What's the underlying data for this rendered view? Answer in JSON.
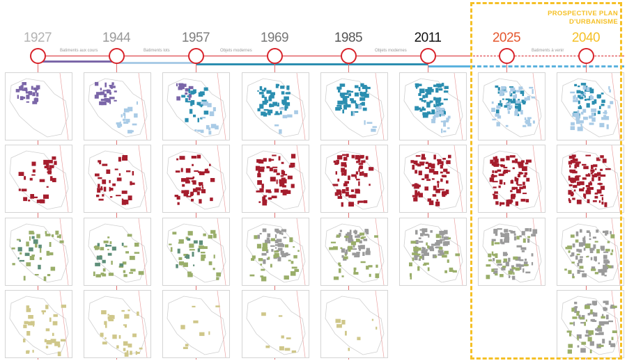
{
  "years": [
    {
      "label": "1927",
      "color": "#b3b3b3"
    },
    {
      "label": "1944",
      "color": "#9a9a9a"
    },
    {
      "label": "1957",
      "color": "#7d7d7d"
    },
    {
      "label": "1969",
      "color": "#777777"
    },
    {
      "label": "1985",
      "color": "#555555"
    },
    {
      "label": "2011",
      "color": "#111111"
    },
    {
      "label": "2025",
      "color": "#e4572e"
    },
    {
      "label": "2040",
      "color": "#f5c026"
    }
  ],
  "timeline_labels": [
    {
      "text": "Batiments aux cours"
    },
    {
      "text": "Batiments lots"
    },
    {
      "text": "Objets modernes"
    },
    {
      "text": "Objets modernes"
    },
    {
      "text": "Batiments à venir"
    }
  ],
  "prospective": {
    "line1": "PROSPECTIVE PLAN",
    "line2": "D'URBANISME",
    "color": "#f5c026"
  },
  "colors": {
    "timeline_red": "#d8232a",
    "purple": "#7b66a8",
    "light_blue": "#a9cbe6",
    "teal": "#2b8eb0",
    "sky": "#5bb2de",
    "crimson": "#a51d2d",
    "olive": "#9aae6a",
    "grey": "#9b9b9b",
    "khaki": "#cfc78a"
  },
  "rows": [
    {
      "name": "buildings-evolution",
      "columns": 8
    },
    {
      "name": "built-footprint",
      "columns": 8
    },
    {
      "name": "green-spaces",
      "columns": 8
    },
    {
      "name": "agricultural-plots",
      "columns": 5
    }
  ]
}
